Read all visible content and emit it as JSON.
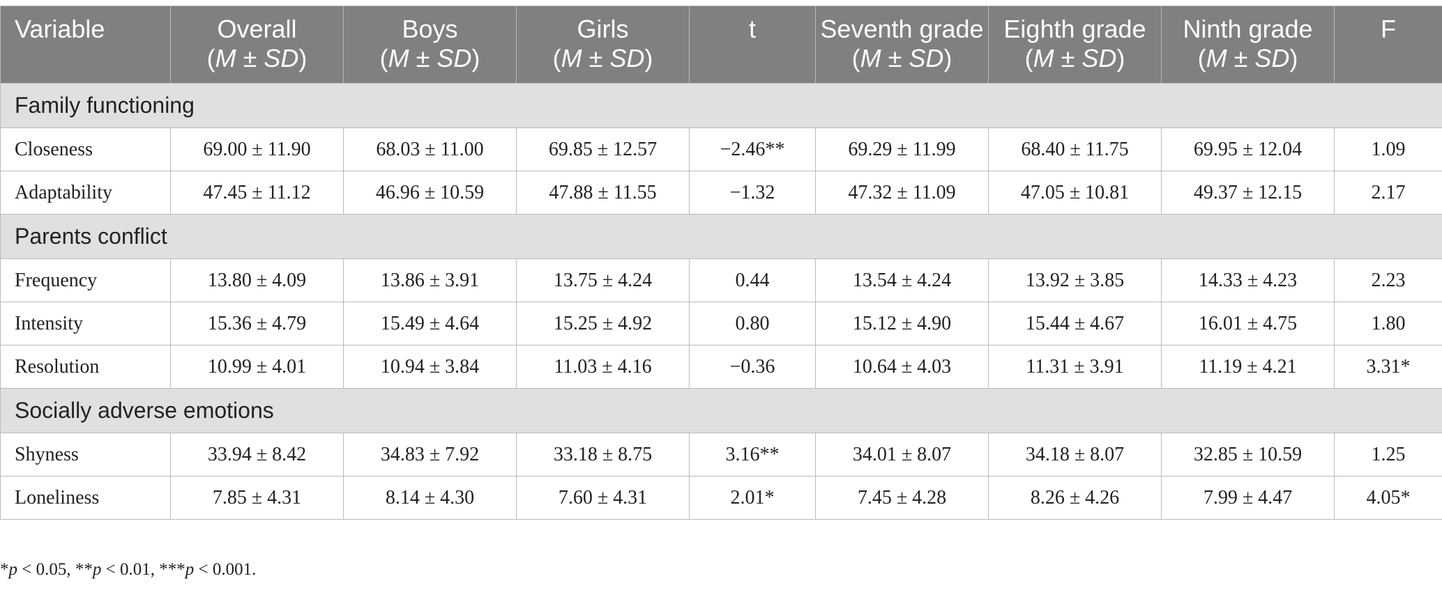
{
  "table": {
    "headers": [
      {
        "label": "Variable",
        "msd": ""
      },
      {
        "label": "Overall",
        "msd": "M ± SD"
      },
      {
        "label": "Boys",
        "msd": "M ± SD"
      },
      {
        "label": "Girls",
        "msd": "M ± SD"
      },
      {
        "label": "t",
        "msd": ""
      },
      {
        "label": "Seventh grade",
        "msd": "M ± SD"
      },
      {
        "label": "Eighth grade",
        "msd": "M ± SD"
      },
      {
        "label": "Ninth grade",
        "msd": "M ± SD"
      },
      {
        "label": "F",
        "msd": ""
      }
    ],
    "sections": [
      {
        "title": "Family functioning",
        "rows": [
          [
            "Closeness",
            "69.00 ± 11.90",
            "68.03 ± 11.00",
            "69.85 ± 12.57",
            "−2.46**",
            "69.29 ± 11.99",
            "68.40 ± 11.75",
            "69.95 ± 12.04",
            "1.09"
          ],
          [
            "Adaptability",
            "47.45 ± 11.12",
            "46.96 ± 10.59",
            "47.88 ± 11.55",
            "−1.32",
            "47.32 ± 11.09",
            "47.05 ± 10.81",
            "49.37 ± 12.15",
            "2.17"
          ]
        ]
      },
      {
        "title": "Parents conflict",
        "rows": [
          [
            "Frequency",
            "13.80 ± 4.09",
            "13.86 ± 3.91",
            "13.75 ± 4.24",
            "0.44",
            "13.54 ± 4.24",
            "13.92 ± 3.85",
            "14.33 ± 4.23",
            "2.23"
          ],
          [
            "Intensity",
            "15.36 ± 4.79",
            "15.49 ± 4.64",
            "15.25 ± 4.92",
            "0.80",
            "15.12 ± 4.90",
            "15.44 ± 4.67",
            "16.01 ± 4.75",
            "1.80"
          ],
          [
            "Resolution",
            "10.99 ± 4.01",
            "10.94 ± 3.84",
            "11.03 ± 4.16",
            "−0.36",
            "10.64 ± 4.03",
            "11.31 ± 3.91",
            "11.19 ± 4.21",
            "3.31*"
          ]
        ]
      },
      {
        "title": "Socially adverse emotions",
        "rows": [
          [
            "Shyness",
            "33.94 ± 8.42",
            "34.83 ± 7.92",
            "33.18 ± 8.75",
            "3.16**",
            "34.01 ± 8.07",
            "34.18 ± 8.07",
            "32.85 ± 10.59",
            "1.25"
          ],
          [
            "Loneliness",
            "7.85 ± 4.31",
            "8.14 ± 4.30",
            "7.60 ± 4.31",
            "2.01*",
            "7.45 ± 4.28",
            "8.26 ± 4.26",
            "7.99 ± 4.47",
            "4.05*"
          ]
        ]
      }
    ]
  },
  "footnote": {
    "parts": [
      {
        "t": "*",
        "i": false
      },
      {
        "t": "p",
        "i": true
      },
      {
        "t": " < 0.05, **",
        "i": false
      },
      {
        "t": "p",
        "i": true
      },
      {
        "t": " < 0.01, ***",
        "i": false
      },
      {
        "t": "p",
        "i": true
      },
      {
        "t": " < 0.001.",
        "i": false
      }
    ]
  },
  "colors": {
    "header_bg": "#808080",
    "header_text": "#ffffff",
    "section_bg": "#e0e0e0",
    "border": "#b9b9b9",
    "text": "#222222"
  }
}
